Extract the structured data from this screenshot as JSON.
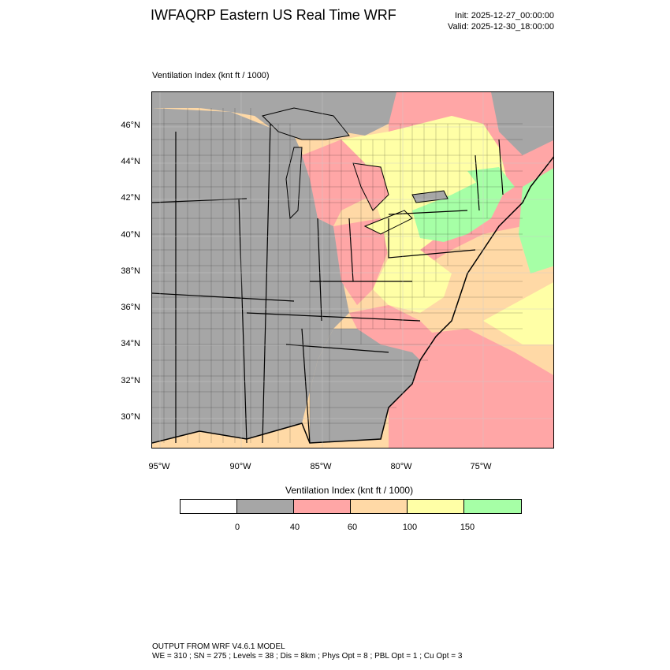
{
  "header": {
    "title": "IWFAQRP Eastern US Real Time WRF",
    "init": "Init: 2025-12-27_00:00:00",
    "valid": "Valid: 2025-12-30_18:00:00"
  },
  "plot": {
    "variable_label": "Ventilation Index   (knt ft / 1000)"
  },
  "axes": {
    "lat_labels": [
      "46°N",
      "44°N",
      "42°N",
      "40°N",
      "38°N",
      "36°N",
      "34°N",
      "32°N",
      "30°N"
    ],
    "lon_labels": [
      "95°W",
      "90°W",
      "85°W",
      "80°W",
      "75°W"
    ]
  },
  "colorbar": {
    "title": "Ventilation Index  (knt ft / 1000)",
    "colors": [
      "#ffffff",
      "#a6a6a6",
      "#ffa6a6",
      "#ffd9a6",
      "#ffffa6",
      "#a6ffa6"
    ],
    "ticks": [
      "0",
      "40",
      "60",
      "100",
      "150"
    ]
  },
  "footer": {
    "line1": "OUTPUT FROM WRF V4.6.1 MODEL",
    "line2": "WE = 310 ; SN = 275 ; Levels = 38 ; Dis = 8km ; Phys Opt = 8 ; PBL Opt = 1 ; Cu Opt = 3"
  }
}
